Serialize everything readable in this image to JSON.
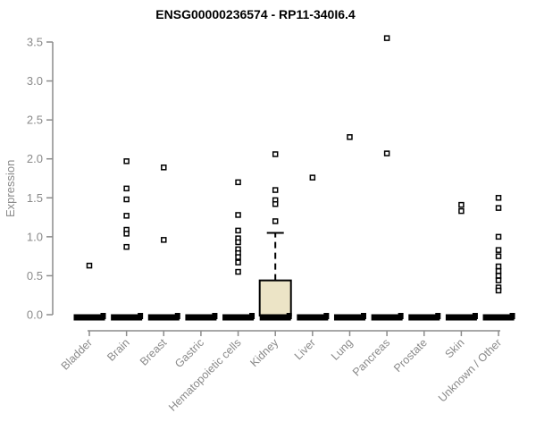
{
  "chart_data": {
    "type": "box",
    "title": "ENSG00000236574 - RP11-340I6.4",
    "ylabel": "Expression",
    "xlabel": "",
    "ylim": [
      0,
      3.5
    ],
    "ytick_labels": [
      "0.0",
      "0.5",
      "1.0",
      "1.5",
      "2.0",
      "2.5",
      "3.0",
      "3.5"
    ],
    "ytick_values": [
      0,
      0.5,
      1.0,
      1.5,
      2.0,
      2.5,
      3.0,
      3.5
    ],
    "grid": false,
    "legend": false,
    "categories": [
      "Bladder",
      "Brain",
      "Breast",
      "Gastric",
      "Hematopoietic cells",
      "Kidney",
      "Liver",
      "Lung",
      "Pancreas",
      "Prostate",
      "Skin",
      "Unknown / Other"
    ],
    "series": [
      {
        "category": "Bladder",
        "box": {
          "low": 0,
          "q1": 0,
          "median": 0,
          "q3": 0,
          "high": 0
        },
        "outliers": [
          0.63
        ]
      },
      {
        "category": "Brain",
        "box": {
          "low": 0,
          "q1": 0,
          "median": 0,
          "q3": 0,
          "high": 0
        },
        "outliers": [
          1.97,
          1.62,
          1.48,
          1.27,
          1.09,
          1.04,
          0.87
        ]
      },
      {
        "category": "Breast",
        "box": {
          "low": 0,
          "q1": 0,
          "median": 0,
          "q3": 0,
          "high": 0
        },
        "outliers": [
          1.89,
          0.96
        ]
      },
      {
        "category": "Gastric",
        "box": {
          "low": 0,
          "q1": 0,
          "median": 0,
          "q3": 0,
          "high": 0
        },
        "outliers": []
      },
      {
        "category": "Hematopoietic cells",
        "box": {
          "low": 0,
          "q1": 0,
          "median": 0,
          "q3": 0,
          "high": 0
        },
        "outliers": [
          1.7,
          1.28,
          1.08,
          0.98,
          0.93,
          0.84,
          0.79,
          0.74,
          0.67,
          0.55
        ]
      },
      {
        "category": "Kidney",
        "box": {
          "low": 0,
          "q1": 0,
          "median": 0,
          "q3": 0.44,
          "high": 1.05
        },
        "outliers": [
          2.06,
          1.6,
          1.47,
          1.42,
          1.2
        ]
      },
      {
        "category": "Liver",
        "box": {
          "low": 0,
          "q1": 0,
          "median": 0,
          "q3": 0,
          "high": 0
        },
        "outliers": [
          1.76
        ]
      },
      {
        "category": "Lung",
        "box": {
          "low": 0,
          "q1": 0,
          "median": 0,
          "q3": 0,
          "high": 0
        },
        "outliers": [
          2.28
        ]
      },
      {
        "category": "Pancreas",
        "box": {
          "low": 0,
          "q1": 0,
          "median": 0,
          "q3": 0,
          "high": 0
        },
        "outliers": [
          3.55,
          2.07
        ]
      },
      {
        "category": "Prostate",
        "box": {
          "low": 0,
          "q1": 0,
          "median": 0,
          "q3": 0,
          "high": 0
        },
        "outliers": []
      },
      {
        "category": "Skin",
        "box": {
          "low": 0,
          "q1": 0,
          "median": 0,
          "q3": 0,
          "high": 0
        },
        "outliers": [
          1.41,
          1.33
        ]
      },
      {
        "category": "Unknown / Other",
        "box": {
          "low": 0,
          "q1": 0,
          "median": 0,
          "q3": 0,
          "high": 0
        },
        "outliers": [
          1.5,
          1.37,
          1.0,
          0.83,
          0.75,
          0.62,
          0.56,
          0.5,
          0.44,
          0.35,
          0.31
        ]
      }
    ],
    "colors": {
      "title": "#000000",
      "axis_line": "#8c8c8c",
      "tick_label": "#8a8a8a",
      "box_fill": "#ece4c6",
      "box_border": "#000000",
      "median_bar": "#000000",
      "whisker": "#000000",
      "marker_border": "#000000",
      "marker_fill": "#ffffff",
      "background": "#ffffff"
    }
  }
}
